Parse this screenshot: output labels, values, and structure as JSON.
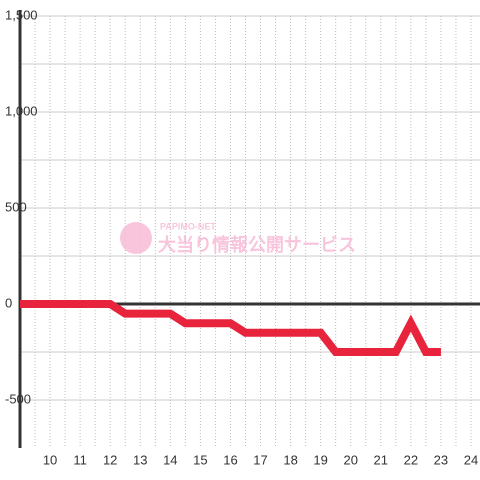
{
  "chart_data": {
    "type": "line",
    "x": [
      9,
      12,
      12.5,
      14,
      14.5,
      16,
      16.5,
      19,
      19.5,
      21.5,
      22,
      22.5,
      23
    ],
    "series": [
      {
        "color": "#e8233c",
        "values": [
          0,
          0,
          -50,
          -50,
          -100,
          -100,
          -150,
          -150,
          -250,
          -250,
          -100,
          -250,
          -250
        ]
      }
    ],
    "xlim": [
      9,
      24.3
    ],
    "xticks": [
      10,
      11,
      12,
      13,
      14,
      15,
      16,
      17,
      18,
      19,
      20,
      21,
      22,
      23,
      24
    ],
    "ylim": [
      -750,
      1500
    ],
    "yticks": [
      {
        "value": -500,
        "label": "-500"
      },
      0,
      500,
      {
        "value": 1000,
        "label": "1,000"
      },
      {
        "value": 1500,
        "label": "1,500"
      }
    ],
    "grid": true,
    "watermark": {
      "small": "PAPIMO-NET",
      "large": "大当り情報公開サービス"
    }
  }
}
